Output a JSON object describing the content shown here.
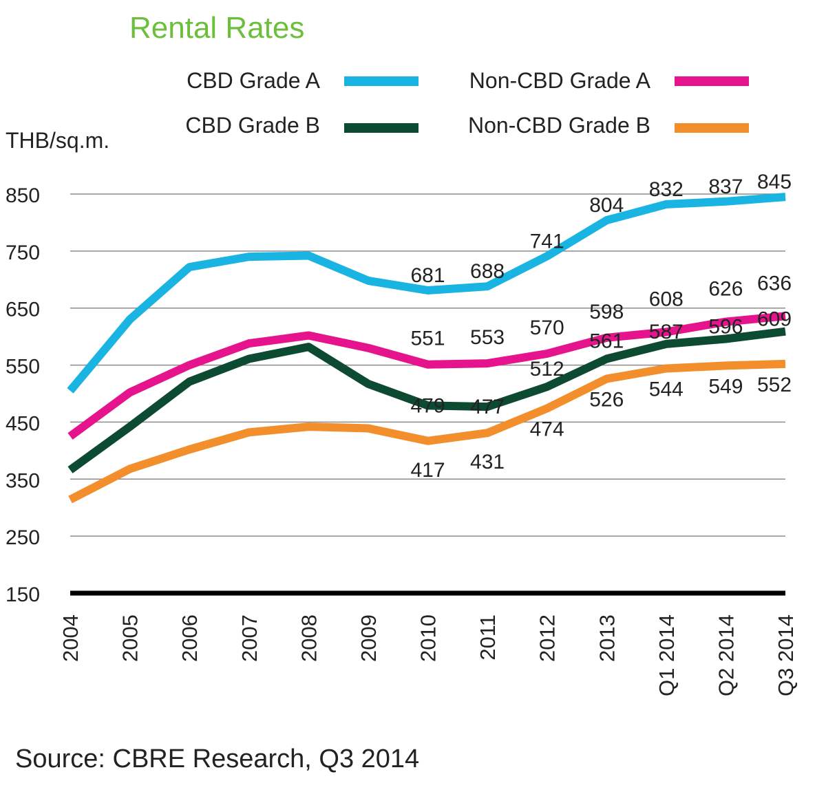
{
  "chart_data": {
    "type": "line",
    "title": "Rental Rates",
    "ylabel": "THB/sq.m.",
    "ylim": [
      150,
      850
    ],
    "yticks": [
      850,
      750,
      650,
      550,
      450,
      350,
      250,
      150
    ],
    "categories": [
      "2004",
      "2005",
      "2006",
      "2007",
      "2008",
      "2009",
      "2010",
      "2011",
      "2012",
      "2013",
      "Q1 2014",
      "Q2 2014",
      "Q3 2014"
    ],
    "grid": true,
    "legend_position": "top",
    "title_color": "#6cbf3b",
    "series": [
      {
        "name": "CBD Grade A",
        "color": "#1ab4e2",
        "values": [
          505,
          630,
          722,
          740,
          742,
          698,
          681,
          688,
          741,
          804,
          832,
          837,
          845
        ],
        "labels": [
          null,
          null,
          null,
          null,
          null,
          null,
          "681",
          "688",
          "741",
          "804",
          "832",
          "837",
          "845"
        ]
      },
      {
        "name": "Non-CBD Grade A",
        "color": "#e5148c",
        "values": [
          425,
          502,
          550,
          588,
          602,
          580,
          551,
          553,
          570,
          598,
          608,
          626,
          636
        ],
        "labels": [
          null,
          null,
          null,
          null,
          null,
          null,
          "551",
          "553",
          "570",
          "598",
          "608",
          "626",
          "636"
        ]
      },
      {
        "name": "CBD Grade B",
        "color": "#0d4a32",
        "values": [
          366,
          442,
          521,
          561,
          582,
          517,
          479,
          477,
          512,
          561,
          587,
          596,
          609
        ],
        "labels": [
          null,
          null,
          null,
          null,
          null,
          null,
          "479",
          "477",
          "512",
          "561",
          "587",
          "596",
          "609"
        ]
      },
      {
        "name": "Non-CBD Grade B",
        "color": "#f28e2b",
        "values": [
          314,
          368,
          402,
          432,
          442,
          439,
          417,
          431,
          474,
          526,
          544,
          549,
          552
        ],
        "labels": [
          null,
          null,
          null,
          null,
          null,
          null,
          "417",
          "431",
          "474",
          "526",
          "544",
          "549",
          "552"
        ]
      }
    ]
  },
  "source": "Source: CBRE Research, Q3 2014"
}
